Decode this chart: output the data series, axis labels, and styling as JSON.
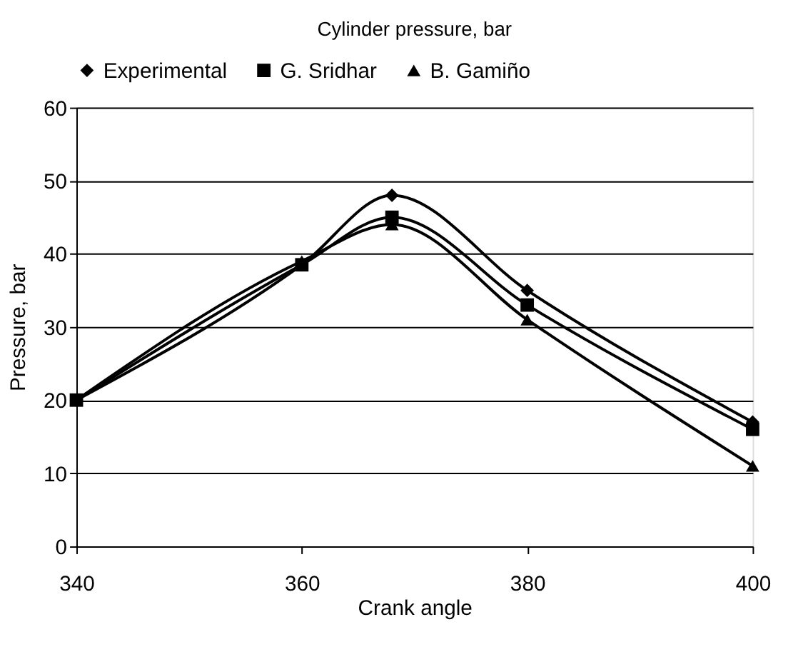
{
  "chart_data": {
    "type": "line",
    "title": "Cylinder pressure, bar",
    "xlabel": "Crank angle",
    "ylabel": "Pressure, bar",
    "x": [
      340,
      360,
      368,
      380,
      400
    ],
    "series": [
      {
        "name": "Experimental",
        "color": "#000000",
        "marker": "diamond",
        "values": [
          20,
          38.5,
          48,
          35,
          17
        ]
      },
      {
        "name": "G. Sridhar",
        "color": "#000000",
        "marker": "square",
        "values": [
          20,
          38.5,
          45,
          33,
          16
        ]
      },
      {
        "name": "B. Gamiño",
        "color": "#000000",
        "marker": "triangle",
        "values": [
          20,
          39,
          44,
          31,
          11
        ]
      }
    ],
    "xlim": [
      340,
      400
    ],
    "xticks": [
      340,
      360,
      380,
      400
    ],
    "ylim": [
      0,
      60
    ],
    "yticks": [
      0,
      10,
      20,
      30,
      40,
      50,
      60
    ],
    "grid": "y",
    "legend": "top",
    "line_style": "solid"
  }
}
